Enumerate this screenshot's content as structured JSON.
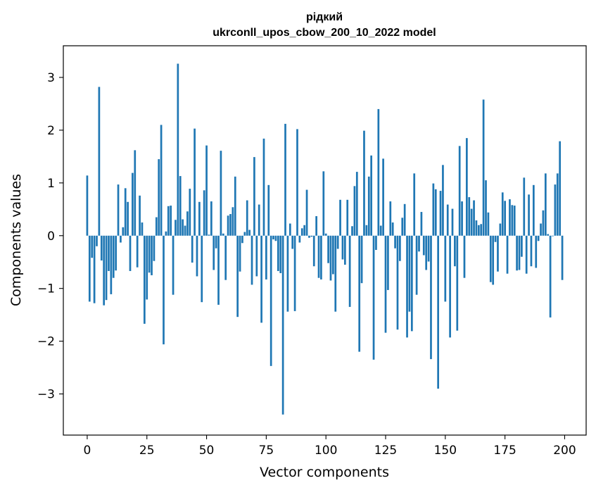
{
  "chart_data": {
    "type": "bar",
    "title_line1": "рідкий",
    "title_line2": "ukrconll_upos_cbow_200_10_2022 model",
    "xlabel": "Vector components",
    "ylabel": "Components values",
    "xlim": [
      -10,
      209
    ],
    "ylim": [
      -3.78,
      3.6
    ],
    "x_ticks": [
      0,
      25,
      50,
      75,
      100,
      125,
      150,
      175,
      200
    ],
    "x_tick_labels": [
      "0",
      "25",
      "50",
      "75",
      "100",
      "125",
      "150",
      "175",
      "200"
    ],
    "y_ticks": [
      -3,
      -2,
      -1,
      0,
      1,
      2,
      3
    ],
    "y_tick_labels": [
      "−3",
      "−2",
      "−1",
      "0",
      "1",
      "2",
      "3"
    ],
    "bar_color": "#1f77b4",
    "grid": false,
    "values": [
      1.14,
      -1.25,
      -0.42,
      -1.28,
      -0.2,
      2.82,
      -0.47,
      -1.32,
      -1.22,
      -0.67,
      -1.11,
      -0.8,
      -0.66,
      0.97,
      -0.13,
      0.16,
      0.9,
      0.64,
      -0.67,
      1.19,
      1.62,
      -0.6,
      0.76,
      0.25,
      -1.67,
      -1.21,
      -0.7,
      -0.75,
      -0.48,
      0.35,
      1.45,
      2.1,
      -2.06,
      0.08,
      0.56,
      0.57,
      -1.12,
      0.3,
      3.26,
      1.13,
      0.31,
      0.19,
      0.46,
      0.89,
      -0.51,
      2.03,
      -0.77,
      0.64,
      -1.26,
      0.86,
      1.71,
      0.02,
      0.65,
      -0.65,
      -0.24,
      -1.31,
      1.61,
      0.04,
      -0.84,
      0.38,
      0.41,
      0.54,
      1.12,
      -1.54,
      -0.68,
      -0.14,
      0.07,
      0.67,
      0.11,
      -0.93,
      1.49,
      -0.77,
      0.59,
      -1.65,
      1.84,
      -0.83,
      0.96,
      -2.47,
      -0.07,
      -0.1,
      -0.67,
      -0.71,
      -3.39,
      2.12,
      -1.44,
      0.23,
      -0.25,
      -1.43,
      2.02,
      -0.13,
      0.14,
      0.2,
      0.87,
      -0.04,
      -0.02,
      -0.58,
      0.37,
      -0.8,
      -0.83,
      1.22,
      0.04,
      -0.52,
      -0.85,
      -0.73,
      -1.44,
      -0.25,
      0.68,
      -0.45,
      -0.55,
      0.68,
      -1.35,
      0.18,
      0.94,
      1.21,
      -2.2,
      -0.9,
      1.99,
      0.2,
      1.12,
      1.52,
      -2.35,
      -0.27,
      2.4,
      0.19,
      1.46,
      -1.84,
      -1.03,
      0.65,
      0.25,
      -0.24,
      -1.78,
      -0.48,
      0.34,
      0.6,
      -1.93,
      -1.44,
      -1.81,
      1.18,
      -1.12,
      -0.3,
      0.45,
      -0.37,
      -0.65,
      -0.49,
      -2.34,
      0.99,
      0.88,
      -2.9,
      0.85,
      1.34,
      -1.25,
      0.59,
      -1.93,
      0.51,
      -0.58,
      -1.8,
      1.7,
      0.65,
      -0.8,
      1.85,
      0.73,
      0.51,
      0.67,
      0.29,
      0.2,
      0.22,
      2.58,
      1.05,
      0.44,
      -0.88,
      -0.93,
      -0.12,
      -0.68,
      0.23,
      0.82,
      0.66,
      -0.72,
      0.69,
      0.58,
      0.57,
      -0.66,
      -0.65,
      -0.4,
      1.1,
      -0.72,
      0.78,
      -0.58,
      0.96,
      -0.61,
      -0.1,
      0.23,
      0.48,
      1.18,
      0.03,
      -1.55,
      -0.01,
      0.97,
      1.18,
      1.79,
      -0.84
    ]
  }
}
